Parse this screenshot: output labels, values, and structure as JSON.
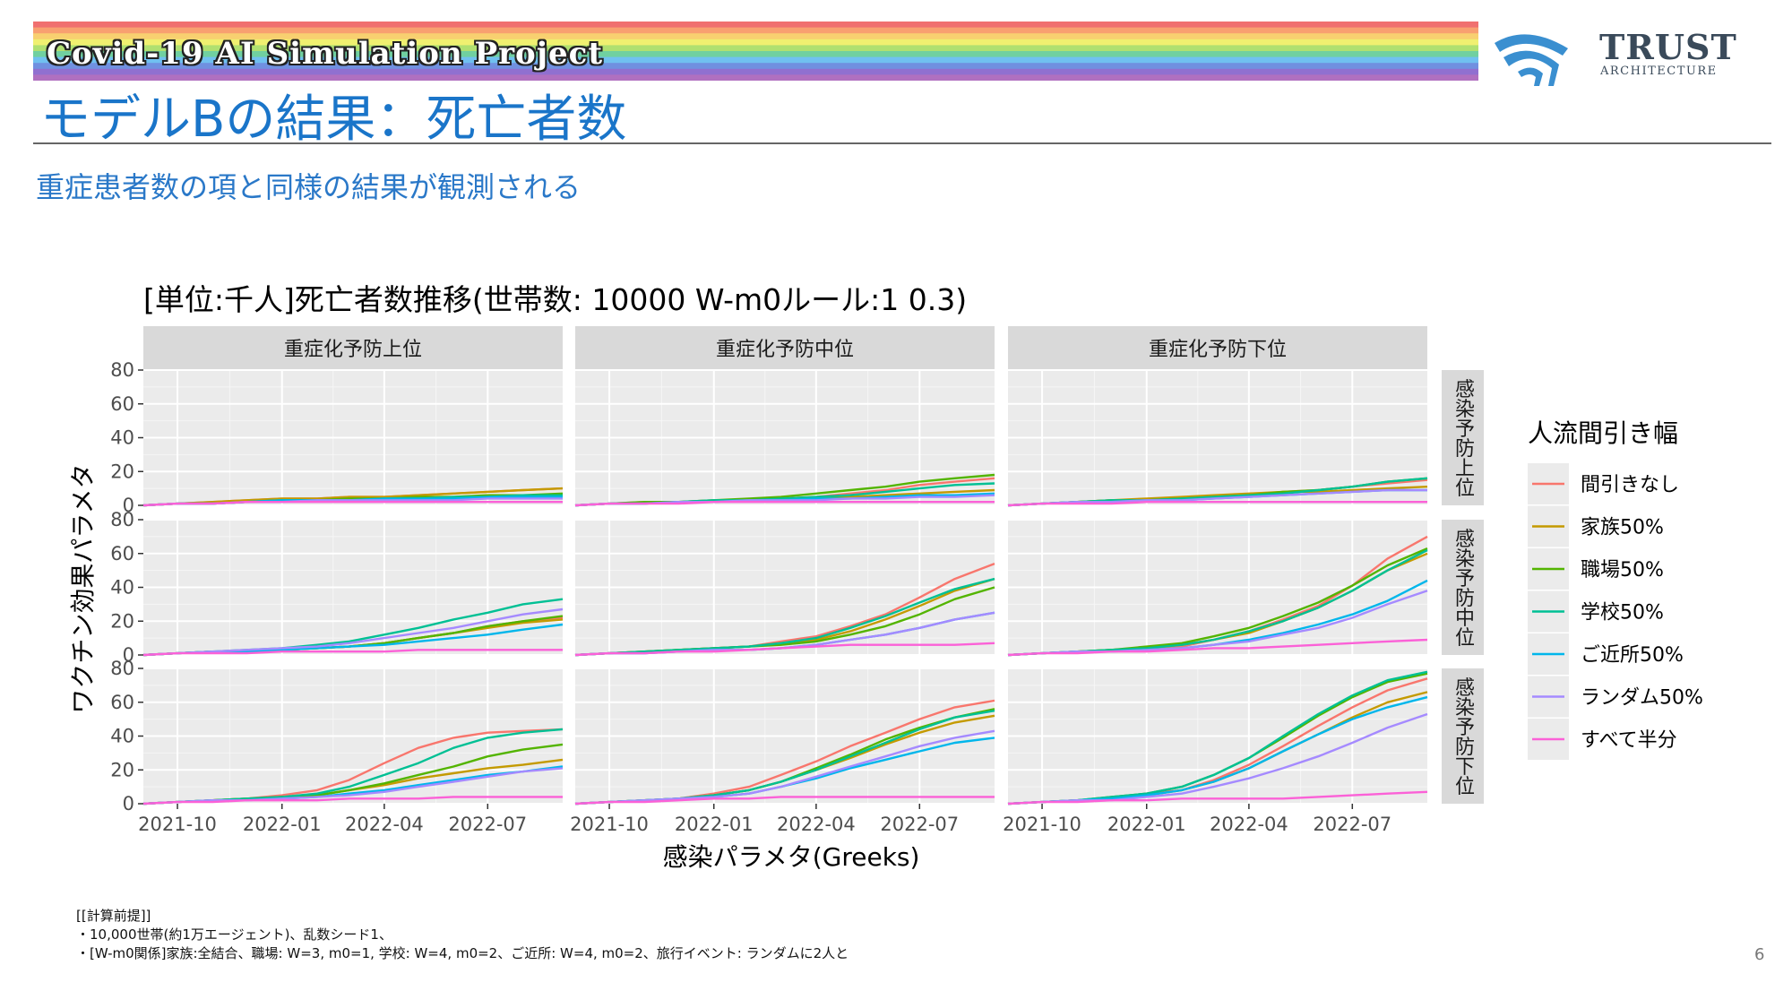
{
  "banner": {
    "title": "Covid-19 AI Simulation Project",
    "stripe_colors": [
      "#f07070",
      "#f8a070",
      "#f8d070",
      "#f0f070",
      "#b0e070",
      "#70d0a0",
      "#70c0f0",
      "#7090e0",
      "#9070d0",
      "#b070c0"
    ]
  },
  "logo": {
    "name": "TRUST",
    "sub": "ARCHITECTURE",
    "color": "#3a4a5a",
    "mark_color": "#3a8fd0"
  },
  "slide": {
    "title": "モデルBの結果：死亡者数",
    "subtitle": "重症患者数の項と同様の結果が観測される",
    "page_number": "6"
  },
  "notes": [
    "[[計算前提]]",
    "・10,000世帯(約1万エージェント)、乱数シード1、",
    "・[W-m0関係]家族:全結合、職場: W=3, m0=1, 学校: W=4, m0=2、ご近所: W=4, m0=2、旅行イベント: ランダムに2人と"
  ],
  "chart_data": {
    "type": "line",
    "title": "[単位:千人]死亡者数推移(世帯数: 10000 W-m0ルール:1 0.3)",
    "xlabel": "感染パラメタ(Greeks)",
    "ylabel": "ワクチン効果パラメタ",
    "x_range": [
      "2021-09-01",
      "2022-09-05"
    ],
    "x_ticks": [
      "2021-10",
      "2022-01",
      "2022-04",
      "2022-07"
    ],
    "ylim": [
      0,
      80
    ],
    "y_ticks": [
      0,
      20,
      40,
      60,
      80
    ],
    "grid": true,
    "col_facets": [
      "重症化予防上位",
      "重症化予防中位",
      "重症化予防下位"
    ],
    "row_facets": [
      "感染予防上位",
      "感染予防中位",
      "感染予防下位"
    ],
    "legend": {
      "title": "人流間引き幅",
      "position": "right"
    },
    "dates": [
      "2021-09-01",
      "2021-10-01",
      "2021-11-01",
      "2021-12-01",
      "2022-01-01",
      "2022-02-01",
      "2022-03-01",
      "2022-04-01",
      "2022-05-01",
      "2022-06-01",
      "2022-07-01",
      "2022-08-01",
      "2022-09-05"
    ],
    "series": [
      {
        "name": "間引きなし",
        "color": "#F8766D"
      },
      {
        "name": "家族50%",
        "color": "#C49A00"
      },
      {
        "name": "職場50%",
        "color": "#53B400"
      },
      {
        "name": "学校50%",
        "color": "#00C094"
      },
      {
        "name": "ご近所50%",
        "color": "#00B6EB"
      },
      {
        "name": "ランダム50%",
        "color": "#A58AFF"
      },
      {
        "name": "すべて半分",
        "color": "#FB61D7"
      }
    ],
    "panels": [
      {
        "row": 0,
        "col": 0,
        "values": [
          [
            0,
            1,
            2,
            3,
            4,
            4,
            5,
            5,
            6,
            7,
            8,
            9,
            10
          ],
          [
            0,
            1,
            2,
            3,
            4,
            4,
            5,
            5,
            6,
            7,
            8,
            9,
            10
          ],
          [
            0,
            1,
            1,
            2,
            3,
            3,
            4,
            4,
            5,
            5,
            6,
            6,
            7
          ],
          [
            0,
            1,
            1,
            2,
            3,
            3,
            3,
            4,
            4,
            5,
            5,
            6,
            6
          ],
          [
            0,
            1,
            1,
            2,
            3,
            3,
            3,
            4,
            4,
            4,
            5,
            5,
            5
          ],
          [
            0,
            1,
            1,
            2,
            2,
            3,
            3,
            3,
            3,
            3,
            4,
            4,
            4
          ],
          [
            0,
            1,
            1,
            2,
            2,
            2,
            2,
            2,
            2,
            2,
            2,
            2,
            2
          ]
        ]
      },
      {
        "row": 0,
        "col": 1,
        "values": [
          [
            0,
            1,
            2,
            2,
            3,
            3,
            4,
            5,
            7,
            9,
            12,
            14,
            16
          ],
          [
            0,
            1,
            1,
            2,
            2,
            3,
            3,
            4,
            5,
            6,
            7,
            8,
            9
          ],
          [
            0,
            1,
            2,
            2,
            3,
            4,
            5,
            7,
            9,
            11,
            14,
            16,
            18
          ],
          [
            0,
            1,
            1,
            2,
            3,
            3,
            4,
            5,
            6,
            8,
            10,
            12,
            13
          ],
          [
            0,
            1,
            1,
            2,
            2,
            3,
            3,
            4,
            4,
            5,
            6,
            6,
            7
          ],
          [
            0,
            1,
            1,
            2,
            2,
            3,
            3,
            3,
            4,
            4,
            5,
            5,
            6
          ],
          [
            0,
            1,
            1,
            1,
            2,
            2,
            2,
            2,
            2,
            2,
            2,
            2,
            2
          ]
        ]
      },
      {
        "row": 0,
        "col": 2,
        "values": [
          [
            0,
            1,
            2,
            3,
            3,
            4,
            5,
            6,
            8,
            9,
            11,
            13,
            15
          ],
          [
            0,
            1,
            2,
            3,
            4,
            5,
            6,
            7,
            8,
            8,
            9,
            10,
            11
          ],
          [
            0,
            1,
            2,
            3,
            3,
            4,
            5,
            6,
            8,
            9,
            11,
            14,
            16
          ],
          [
            0,
            1,
            2,
            3,
            3,
            4,
            5,
            6,
            7,
            9,
            11,
            14,
            16
          ],
          [
            0,
            1,
            2,
            2,
            3,
            3,
            4,
            5,
            6,
            7,
            8,
            9,
            9
          ],
          [
            0,
            1,
            2,
            2,
            3,
            3,
            4,
            5,
            6,
            7,
            8,
            9,
            9
          ],
          [
            0,
            1,
            1,
            1,
            2,
            2,
            2,
            2,
            2,
            2,
            2,
            2,
            2
          ]
        ]
      },
      {
        "row": 1,
        "col": 0,
        "values": [
          [
            0,
            1,
            2,
            2,
            3,
            4,
            5,
            7,
            10,
            13,
            17,
            20,
            22
          ],
          [
            0,
            1,
            2,
            2,
            3,
            4,
            5,
            7,
            10,
            13,
            16,
            19,
            21
          ],
          [
            0,
            1,
            2,
            2,
            3,
            4,
            5,
            7,
            10,
            13,
            17,
            20,
            23
          ],
          [
            0,
            1,
            2,
            3,
            4,
            6,
            8,
            12,
            16,
            21,
            25,
            30,
            33
          ],
          [
            0,
            1,
            2,
            2,
            3,
            4,
            5,
            6,
            8,
            10,
            12,
            15,
            18
          ],
          [
            0,
            1,
            2,
            3,
            4,
            5,
            7,
            10,
            13,
            16,
            20,
            24,
            27
          ],
          [
            0,
            1,
            1,
            1,
            2,
            2,
            2,
            2,
            3,
            3,
            3,
            3,
            3
          ]
        ]
      },
      {
        "row": 1,
        "col": 1,
        "values": [
          [
            0,
            1,
            2,
            3,
            4,
            5,
            8,
            11,
            17,
            24,
            34,
            45,
            54
          ],
          [
            0,
            1,
            2,
            3,
            4,
            5,
            7,
            9,
            14,
            21,
            29,
            38,
            45
          ],
          [
            0,
            1,
            2,
            3,
            4,
            5,
            6,
            8,
            12,
            17,
            24,
            33,
            40
          ],
          [
            0,
            1,
            2,
            3,
            4,
            5,
            7,
            10,
            16,
            23,
            31,
            39,
            45
          ],
          [
            0,
            1,
            1,
            2,
            3,
            3,
            4,
            6,
            9,
            12,
            16,
            21,
            25
          ],
          [
            0,
            1,
            1,
            2,
            3,
            3,
            4,
            6,
            9,
            12,
            16,
            21,
            25
          ],
          [
            0,
            1,
            1,
            2,
            2,
            3,
            4,
            5,
            6,
            6,
            6,
            6,
            7
          ]
        ]
      },
      {
        "row": 1,
        "col": 2,
        "values": [
          [
            0,
            1,
            2,
            3,
            4,
            5,
            9,
            14,
            21,
            29,
            41,
            57,
            70
          ],
          [
            0,
            1,
            2,
            3,
            4,
            6,
            9,
            13,
            20,
            28,
            38,
            50,
            60
          ],
          [
            0,
            1,
            2,
            3,
            5,
            7,
            11,
            16,
            23,
            31,
            41,
            53,
            63
          ],
          [
            0,
            1,
            2,
            3,
            4,
            6,
            9,
            14,
            20,
            28,
            38,
            50,
            62
          ],
          [
            0,
            1,
            2,
            2,
            3,
            4,
            6,
            9,
            13,
            18,
            24,
            32,
            44
          ],
          [
            0,
            1,
            2,
            2,
            3,
            4,
            6,
            8,
            12,
            16,
            22,
            30,
            38
          ],
          [
            0,
            1,
            1,
            2,
            2,
            3,
            4,
            4,
            5,
            6,
            7,
            8,
            9
          ]
        ]
      },
      {
        "row": 2,
        "col": 0,
        "values": [
          [
            0,
            1,
            2,
            3,
            5,
            8,
            14,
            24,
            33,
            39,
            42,
            43,
            44
          ],
          [
            0,
            1,
            2,
            3,
            4,
            5,
            8,
            11,
            15,
            18,
            21,
            23,
            26
          ],
          [
            0,
            1,
            2,
            3,
            4,
            5,
            8,
            12,
            17,
            22,
            28,
            32,
            35
          ],
          [
            0,
            1,
            2,
            3,
            4,
            6,
            10,
            17,
            24,
            33,
            39,
            42,
            44
          ],
          [
            0,
            1,
            2,
            2,
            3,
            4,
            6,
            8,
            11,
            14,
            17,
            19,
            22
          ],
          [
            0,
            1,
            2,
            2,
            3,
            4,
            5,
            7,
            10,
            13,
            16,
            19,
            21
          ],
          [
            0,
            1,
            1,
            2,
            2,
            2,
            3,
            3,
            3,
            4,
            4,
            4,
            4
          ]
        ]
      },
      {
        "row": 2,
        "col": 1,
        "values": [
          [
            0,
            1,
            2,
            3,
            6,
            10,
            17,
            25,
            34,
            42,
            50,
            57,
            61
          ],
          [
            0,
            1,
            2,
            3,
            5,
            8,
            13,
            20,
            27,
            35,
            42,
            48,
            52
          ],
          [
            0,
            1,
            2,
            3,
            5,
            8,
            13,
            21,
            29,
            38,
            45,
            51,
            56
          ],
          [
            0,
            1,
            2,
            3,
            5,
            8,
            13,
            20,
            28,
            36,
            44,
            51,
            55
          ],
          [
            0,
            1,
            2,
            3,
            4,
            6,
            10,
            15,
            21,
            26,
            31,
            36,
            39
          ],
          [
            0,
            1,
            2,
            3,
            4,
            6,
            10,
            16,
            22,
            28,
            34,
            39,
            43
          ],
          [
            0,
            1,
            1,
            2,
            3,
            3,
            4,
            4,
            4,
            4,
            4,
            4,
            4
          ]
        ]
      },
      {
        "row": 2,
        "col": 2,
        "values": [
          [
            0,
            1,
            2,
            3,
            6,
            8,
            14,
            23,
            34,
            46,
            57,
            67,
            74
          ],
          [
            0,
            1,
            2,
            3,
            5,
            8,
            13,
            21,
            31,
            41,
            51,
            60,
            66
          ],
          [
            0,
            1,
            2,
            4,
            6,
            10,
            17,
            27,
            39,
            52,
            63,
            72,
            77
          ],
          [
            0,
            1,
            2,
            4,
            6,
            10,
            17,
            27,
            40,
            53,
            64,
            73,
            78
          ],
          [
            0,
            1,
            2,
            3,
            5,
            8,
            13,
            21,
            31,
            41,
            50,
            57,
            63
          ],
          [
            0,
            1,
            2,
            2,
            4,
            6,
            10,
            15,
            21,
            28,
            36,
            45,
            53
          ],
          [
            0,
            1,
            1,
            2,
            2,
            3,
            3,
            3,
            3,
            4,
            5,
            6,
            7
          ]
        ]
      }
    ]
  }
}
